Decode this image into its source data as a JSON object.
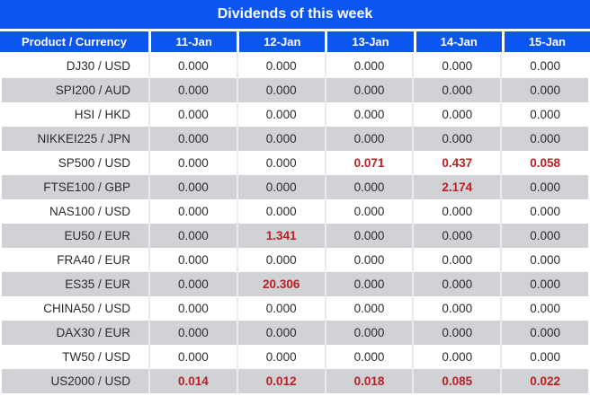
{
  "title": "Dividends of this week",
  "colors": {
    "header_bg": "#0b55f0",
    "header_text": "#ffffff",
    "row_alt_bg": "#d0d2d5",
    "text": "#2b2b2b",
    "highlight_red": "#ba2023"
  },
  "table": {
    "columns": [
      "Product / Currency",
      "11-Jan",
      "12-Jan",
      "13-Jan",
      "14-Jan",
      "15-Jan"
    ],
    "rows": [
      {
        "product": "DJ30 / USD",
        "values": [
          "0.000",
          "0.000",
          "0.000",
          "0.000",
          "0.000"
        ],
        "red": [
          false,
          false,
          false,
          false,
          false
        ]
      },
      {
        "product": "SPI200 / AUD",
        "values": [
          "0.000",
          "0.000",
          "0.000",
          "0.000",
          "0.000"
        ],
        "red": [
          false,
          false,
          false,
          false,
          false
        ]
      },
      {
        "product": "HSI / HKD",
        "values": [
          "0.000",
          "0.000",
          "0.000",
          "0.000",
          "0.000"
        ],
        "red": [
          false,
          false,
          false,
          false,
          false
        ]
      },
      {
        "product": "NIKKEI225 / JPN",
        "values": [
          "0.000",
          "0.000",
          "0.000",
          "0.000",
          "0.000"
        ],
        "red": [
          false,
          false,
          false,
          false,
          false
        ]
      },
      {
        "product": "SP500 / USD",
        "values": [
          "0.000",
          "0.000",
          "0.071",
          "0.437",
          "0.058"
        ],
        "red": [
          false,
          false,
          true,
          true,
          true
        ]
      },
      {
        "product": "FTSE100 / GBP",
        "values": [
          "0.000",
          "0.000",
          "0.000",
          "2.174",
          "0.000"
        ],
        "red": [
          false,
          false,
          false,
          true,
          false
        ]
      },
      {
        "product": "NAS100 / USD",
        "values": [
          "0.000",
          "0.000",
          "0.000",
          "0.000",
          "0.000"
        ],
        "red": [
          false,
          false,
          false,
          false,
          false
        ]
      },
      {
        "product": "EU50 / EUR",
        "values": [
          "0.000",
          "1.341",
          "0.000",
          "0.000",
          "0.000"
        ],
        "red": [
          false,
          true,
          false,
          false,
          false
        ]
      },
      {
        "product": "FRA40 / EUR",
        "values": [
          "0.000",
          "0.000",
          "0.000",
          "0.000",
          "0.000"
        ],
        "red": [
          false,
          false,
          false,
          false,
          false
        ]
      },
      {
        "product": "ES35 / EUR",
        "values": [
          "0.000",
          "20.306",
          "0.000",
          "0.000",
          "0.000"
        ],
        "red": [
          false,
          true,
          false,
          false,
          false
        ]
      },
      {
        "product": "CHINA50 / USD",
        "values": [
          "0.000",
          "0.000",
          "0.000",
          "0.000",
          "0.000"
        ],
        "red": [
          false,
          false,
          false,
          false,
          false
        ]
      },
      {
        "product": "DAX30 / EUR",
        "values": [
          "0.000",
          "0.000",
          "0.000",
          "0.000",
          "0.000"
        ],
        "red": [
          false,
          false,
          false,
          false,
          false
        ]
      },
      {
        "product": "TW50 / USD",
        "values": [
          "0.000",
          "0.000",
          "0.000",
          "0.000",
          "0.000"
        ],
        "red": [
          false,
          false,
          false,
          false,
          false
        ]
      },
      {
        "product": "US2000 / USD",
        "values": [
          "0.014",
          "0.012",
          "0.018",
          "0.085",
          "0.022"
        ],
        "red": [
          true,
          true,
          true,
          true,
          true
        ]
      }
    ]
  }
}
